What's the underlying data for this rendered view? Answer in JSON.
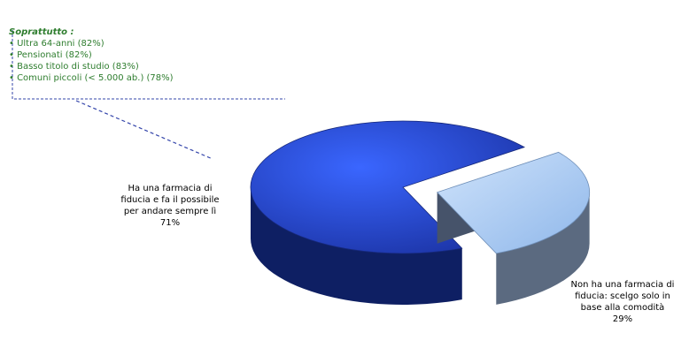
{
  "callout": {
    "title": "Soprattutto :",
    "items": [
      "Ultra 64-anni (82%)",
      "Pensionati (82%)",
      "Basso titolo di studio (83%)",
      "Comuni piccoli (< 5.000 ab.) (78%)"
    ]
  },
  "chart_data": {
    "type": "pie",
    "style": "3D exploded pie",
    "slices": [
      {
        "label": "Ha una farmacia di fiducia e fa il possibile per andare sempre lì",
        "value": 71,
        "value_label": "71%",
        "color_top": "#1f43c6",
        "color_side": "#0e1f63"
      },
      {
        "label": "Non ha una farmacia di fiducia: scelgo solo in base alla comodità",
        "value": 29,
        "value_label": "29%",
        "color_top": "#a9cbf5",
        "color_side": "#5b6a80"
      }
    ]
  },
  "labels": {
    "left_text": "Ha una farmacia di fiducia e fa il possibile per andare sempre lì",
    "left_value": "71%",
    "right_text": "Non ha una farmacia di fiducia: scelgo solo in base alla comodità",
    "right_value": "29%"
  },
  "colors": {
    "callout_text": "#2e7d2e",
    "leader_line": "#3344aa",
    "label_text": "#000000"
  }
}
